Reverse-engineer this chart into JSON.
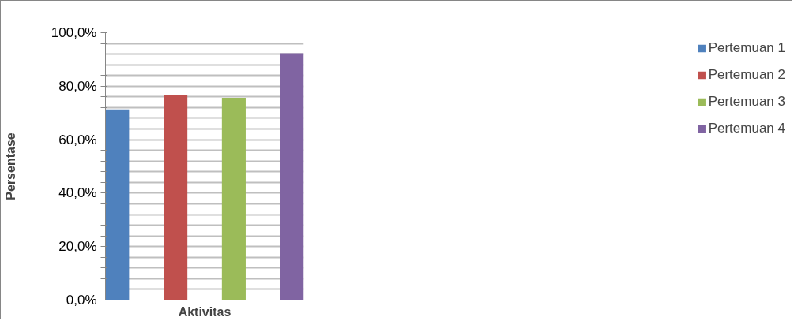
{
  "chart_data": {
    "type": "bar",
    "xlabel": "Aktivitas",
    "ylabel": "Persentase",
    "categories": [
      null
    ],
    "series": [
      {
        "name": "Pertemuan 1",
        "color": "#4f81bd",
        "values": [
          71.3
        ]
      },
      {
        "name": "Pertemuan 2",
        "color": "#c0504d",
        "values": [
          76.7
        ]
      },
      {
        "name": "Pertemuan 3",
        "color": "#9bbb59",
        "values": [
          75.7
        ]
      },
      {
        "name": "Pertemuan 4",
        "color": "#8064a2",
        "values": [
          92.3
        ]
      }
    ],
    "ylim": [
      0,
      100
    ],
    "yticks": [
      {
        "value": 0,
        "label": "0,0%"
      },
      {
        "value": 4,
        "label": null
      },
      {
        "value": 8,
        "label": null
      },
      {
        "value": 12,
        "label": null
      },
      {
        "value": 16,
        "label": null
      },
      {
        "value": 20,
        "label": "20,0%"
      },
      {
        "value": 24,
        "label": null
      },
      {
        "value": 28,
        "label": null
      },
      {
        "value": 32,
        "label": null
      },
      {
        "value": 36,
        "label": null
      },
      {
        "value": 40,
        "label": "40,0%"
      },
      {
        "value": 44,
        "label": null
      },
      {
        "value": 48,
        "label": null
      },
      {
        "value": 52,
        "label": null
      },
      {
        "value": 56,
        "label": null
      },
      {
        "value": 60,
        "label": "60,0%"
      },
      {
        "value": 64,
        "label": null
      },
      {
        "value": 68,
        "label": null
      },
      {
        "value": 72,
        "label": null
      },
      {
        "value": 76,
        "label": null
      },
      {
        "value": 80,
        "label": "80,0%"
      },
      {
        "value": 84,
        "label": null
      },
      {
        "value": 88,
        "label": null
      },
      {
        "value": 92,
        "label": null
      },
      {
        "value": 96,
        "label": null
      },
      {
        "value": 100,
        "label": "100,0%"
      }
    ],
    "grid": "y",
    "legend": "right"
  }
}
